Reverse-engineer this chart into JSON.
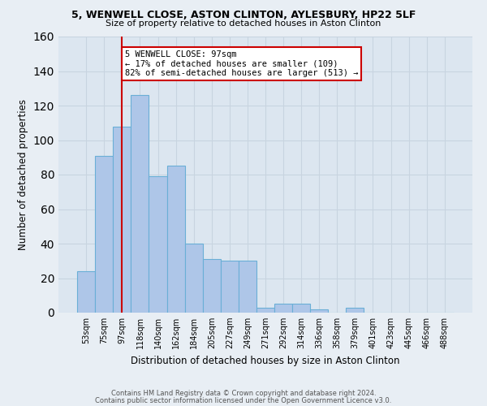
{
  "title_line1": "5, WENWELL CLOSE, ASTON CLINTON, AYLESBURY, HP22 5LF",
  "title_line2": "Size of property relative to detached houses in Aston Clinton",
  "xlabel": "Distribution of detached houses by size in Aston Clinton",
  "ylabel": "Number of detached properties",
  "footer_line1": "Contains HM Land Registry data © Crown copyright and database right 2024.",
  "footer_line2": "Contains public sector information licensed under the Open Government Licence v3.0.",
  "bar_labels": [
    "53sqm",
    "75sqm",
    "97sqm",
    "118sqm",
    "140sqm",
    "162sqm",
    "184sqm",
    "205sqm",
    "227sqm",
    "249sqm",
    "271sqm",
    "292sqm",
    "314sqm",
    "336sqm",
    "358sqm",
    "379sqm",
    "401sqm",
    "423sqm",
    "445sqm",
    "466sqm",
    "488sqm"
  ],
  "bar_values": [
    24,
    91,
    108,
    126,
    79,
    85,
    40,
    31,
    30,
    30,
    3,
    5,
    5,
    2,
    0,
    3,
    0,
    0,
    0,
    0,
    0
  ],
  "bar_color": "#aec6e8",
  "bar_edge_color": "#6aafd6",
  "vline_x_index": 2,
  "vline_color": "#cc0000",
  "annotation_text": "5 WENWELL CLOSE: 97sqm\n← 17% of detached houses are smaller (109)\n82% of semi-detached houses are larger (513) →",
  "annotation_box_color": "white",
  "annotation_box_edge_color": "#cc0000",
  "ylim": [
    0,
    160
  ],
  "yticks": [
    0,
    20,
    40,
    60,
    80,
    100,
    120,
    140,
    160
  ],
  "grid_color": "#c8d4e0",
  "bg_color": "#e8eef4",
  "plot_bg_color": "#dce6f0"
}
